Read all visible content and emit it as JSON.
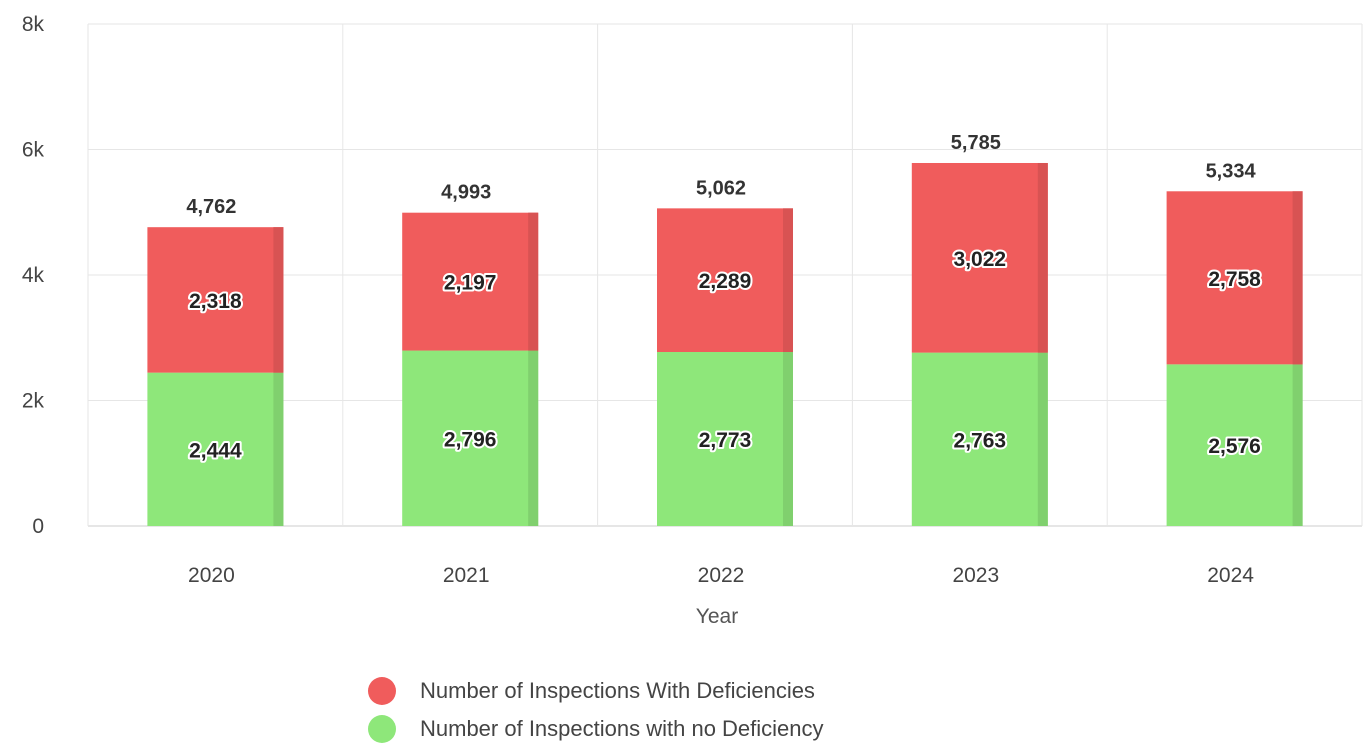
{
  "chart_data": {
    "type": "bar",
    "stacked": true,
    "title": "",
    "xlabel": "Year",
    "ylabel": "",
    "categories": [
      "2020",
      "2021",
      "2022",
      "2023",
      "2024"
    ],
    "ylim": [
      0,
      8000
    ],
    "yticks": [
      0,
      2000,
      4000,
      6000,
      8000
    ],
    "ytick_labels": [
      "0",
      "2k",
      "4k",
      "6k",
      "8k"
    ],
    "grid": true,
    "legend_position": "bottom-center",
    "series": [
      {
        "name": "Number of Inspections with no Deficiency",
        "color": "#8ee77a",
        "values": [
          2444,
          2796,
          2773,
          2763,
          2576
        ],
        "labels": [
          "2,444",
          "2,796",
          "2,773",
          "2,763",
          "2,576"
        ]
      },
      {
        "name": "Number of Inspections With Deficiencies",
        "color": "#f05c5c",
        "values": [
          2318,
          2197,
          2289,
          3022,
          2758
        ],
        "labels": [
          "2,318",
          "2,197",
          "2,289",
          "3,022",
          "2,758"
        ]
      }
    ],
    "totals": [
      4762,
      4993,
      5062,
      5785,
      5334
    ],
    "total_labels": [
      "4,762",
      "4,993",
      "5,062",
      "5,785",
      "5,334"
    ]
  },
  "legend": {
    "items": [
      {
        "label": "Number of Inspections With Deficiencies",
        "color": "#f05c5c"
      },
      {
        "label": "Number of Inspections with no Deficiency",
        "color": "#8ee77a"
      }
    ]
  }
}
